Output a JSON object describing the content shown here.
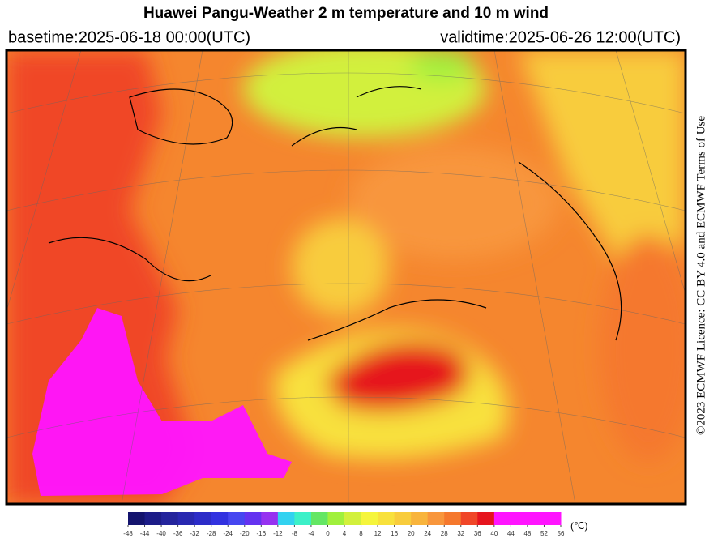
{
  "header": {
    "title": "Huawei Pangu-Weather  2 m temperature and 10 m wind",
    "basetime": "basetime:2025-06-18 00:00(UTC)",
    "validtime": "validtime:2025-06-26 12:00(UTC)"
  },
  "licence": "©2023 ECMWF Licence: CC BY 4.0 and ECMWF  Terms of Use",
  "colorbar": {
    "ticks": [
      -48,
      -44,
      -40,
      -36,
      -32,
      -28,
      -24,
      -20,
      -16,
      -12,
      -8,
      -4,
      0,
      4,
      8,
      12,
      16,
      20,
      24,
      28,
      32,
      36,
      40,
      44,
      48,
      52,
      56
    ],
    "colors": [
      "#14146e",
      "#1c1c88",
      "#24249c",
      "#2828b0",
      "#2c2cc8",
      "#3232e0",
      "#4646f0",
      "#6432f0",
      "#9632f0",
      "#32d2f0",
      "#3cf0c8",
      "#64e664",
      "#a0f03c",
      "#d2f03c",
      "#f5f53c",
      "#f8e13c",
      "#f8cc3c",
      "#f8b43c",
      "#f8963c",
      "#f5782d",
      "#f04628",
      "#e6141e",
      "#ff14ff",
      "#ff14ff",
      "#ff14ff",
      "#ff14ff"
    ],
    "unit": "(℃)"
  }
}
